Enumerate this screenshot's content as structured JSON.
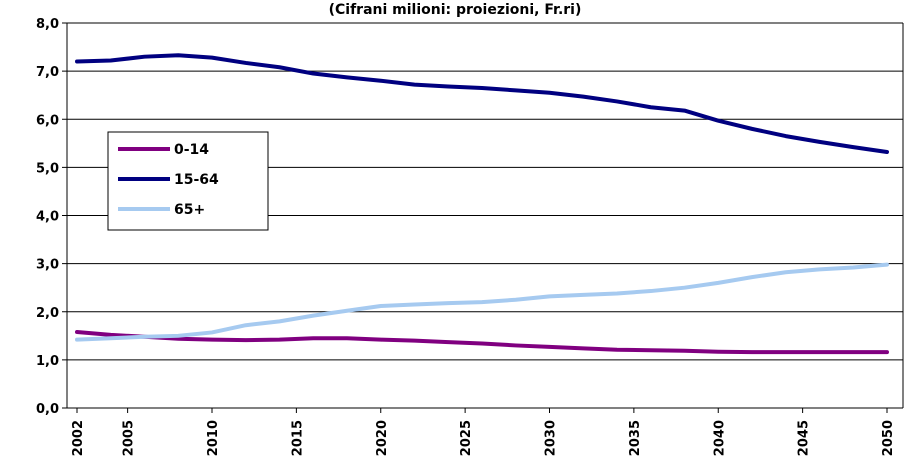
{
  "chart_data": {
    "type": "line",
    "title": "(Cifrani milioni: proiezioni, Fr.ri)",
    "xlabel": "",
    "ylabel": "",
    "ylim": [
      0,
      8
    ],
    "yticks": [
      "0,0",
      "1,0",
      "2,0",
      "3,0",
      "4,0",
      "5,0",
      "6,0",
      "7,0",
      "8,0"
    ],
    "xticks": [
      "2002",
      "2005",
      "2010",
      "2015",
      "2020",
      "2025",
      "2030",
      "2035",
      "2040",
      "2045",
      "2050"
    ],
    "xlim": [
      2002,
      2050
    ],
    "grid": true,
    "legend_position": "left",
    "x": [
      2002,
      2004,
      2006,
      2008,
      2010,
      2012,
      2014,
      2016,
      2018,
      2020,
      2022,
      2024,
      2026,
      2028,
      2030,
      2032,
      2034,
      2036,
      2038,
      2040,
      2042,
      2044,
      2046,
      2048,
      2050
    ],
    "series": [
      {
        "name": "0-14",
        "color": "#800080",
        "values": [
          1.58,
          1.52,
          1.48,
          1.44,
          1.42,
          1.41,
          1.42,
          1.45,
          1.45,
          1.42,
          1.4,
          1.37,
          1.34,
          1.3,
          1.27,
          1.24,
          1.21,
          1.2,
          1.19,
          1.17,
          1.16,
          1.16,
          1.16,
          1.16,
          1.16
        ]
      },
      {
        "name": "15-64",
        "color": "#000080",
        "values": [
          7.2,
          7.22,
          7.3,
          7.33,
          7.28,
          7.17,
          7.08,
          6.95,
          6.87,
          6.8,
          6.72,
          6.68,
          6.65,
          6.6,
          6.55,
          6.47,
          6.37,
          6.25,
          6.18,
          5.97,
          5.8,
          5.65,
          5.53,
          5.42,
          5.32
        ]
      },
      {
        "name": "65+",
        "color": "#A6CAF0",
        "values": [
          1.42,
          1.45,
          1.48,
          1.5,
          1.57,
          1.72,
          1.8,
          1.92,
          2.02,
          2.12,
          2.15,
          2.18,
          2.2,
          2.25,
          2.32,
          2.35,
          2.38,
          2.43,
          2.5,
          2.6,
          2.72,
          2.82,
          2.88,
          2.92,
          2.98
        ]
      }
    ]
  }
}
